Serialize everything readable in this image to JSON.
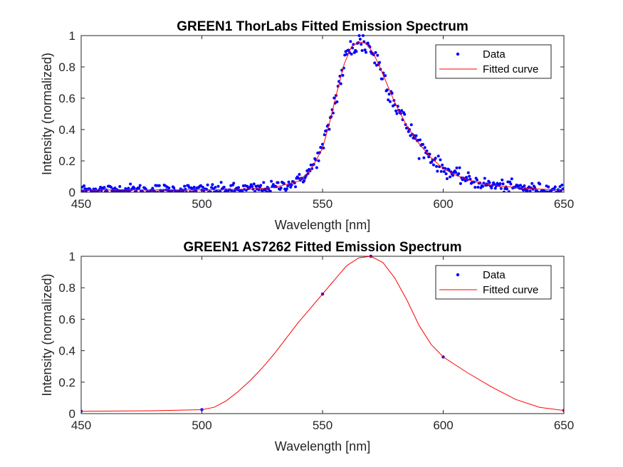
{
  "chart_data": [
    {
      "type": "scatter",
      "title": "GREEN1 ThorLabs Fitted Emission Spectrum",
      "xlabel": "Wavelength [nm]",
      "ylabel": "Intensity (normalized)",
      "xlim": [
        450,
        650
      ],
      "ylim": [
        0,
        1
      ],
      "xticks": [
        450,
        500,
        550,
        600,
        650
      ],
      "yticks": [
        0,
        0.2,
        0.4,
        0.6,
        0.8,
        1
      ],
      "grid": false,
      "legend_position": "top-right",
      "series": [
        {
          "name": "Data",
          "kind": "points",
          "color": "#0000ff",
          "noisy": true,
          "x_range": [
            450,
            650
          ],
          "x_step": 0.4
        },
        {
          "name": "Fitted curve",
          "kind": "line",
          "color": "#ff0000",
          "x": [
            450,
            500,
            520,
            530,
            540,
            545,
            550,
            553,
            556,
            559,
            562,
            565,
            568,
            571,
            574,
            577,
            580,
            585,
            590,
            595,
            600,
            605,
            610,
            615,
            620,
            630,
            640,
            650
          ],
          "y": [
            0.015,
            0.015,
            0.02,
            0.03,
            0.07,
            0.14,
            0.28,
            0.45,
            0.64,
            0.82,
            0.93,
            0.96,
            0.95,
            0.89,
            0.79,
            0.68,
            0.57,
            0.42,
            0.31,
            0.22,
            0.15,
            0.11,
            0.08,
            0.06,
            0.045,
            0.03,
            0.02,
            0.015
          ]
        }
      ]
    },
    {
      "type": "line",
      "title": "GREEN1 AS7262 Fitted Emission Spectrum",
      "xlabel": "Wavelength [nm]",
      "ylabel": "Intensity (normalized)",
      "xlim": [
        450,
        650
      ],
      "ylim": [
        0,
        1
      ],
      "xticks": [
        450,
        500,
        550,
        600,
        650
      ],
      "yticks": [
        0,
        0.2,
        0.4,
        0.6,
        0.8,
        1
      ],
      "grid": false,
      "legend_position": "top-right",
      "series": [
        {
          "name": "Data",
          "kind": "points",
          "color": "#0000ff",
          "x": [
            450,
            500,
            550,
            570,
            600,
            650
          ],
          "y": [
            0.015,
            0.025,
            0.76,
            1.0,
            0.36,
            0.02
          ]
        },
        {
          "name": "Fitted curve",
          "kind": "line",
          "color": "#ff0000",
          "x": [
            450,
            480,
            500,
            505,
            510,
            515,
            520,
            525,
            530,
            535,
            540,
            545,
            550,
            555,
            560,
            565,
            570,
            575,
            580,
            585,
            590,
            595,
            600,
            610,
            620,
            630,
            640,
            650
          ],
          "y": [
            0.015,
            0.018,
            0.025,
            0.04,
            0.08,
            0.14,
            0.21,
            0.29,
            0.38,
            0.48,
            0.58,
            0.67,
            0.76,
            0.85,
            0.94,
            0.99,
            1.0,
            0.96,
            0.86,
            0.72,
            0.56,
            0.44,
            0.36,
            0.26,
            0.17,
            0.09,
            0.04,
            0.02
          ]
        }
      ]
    }
  ]
}
